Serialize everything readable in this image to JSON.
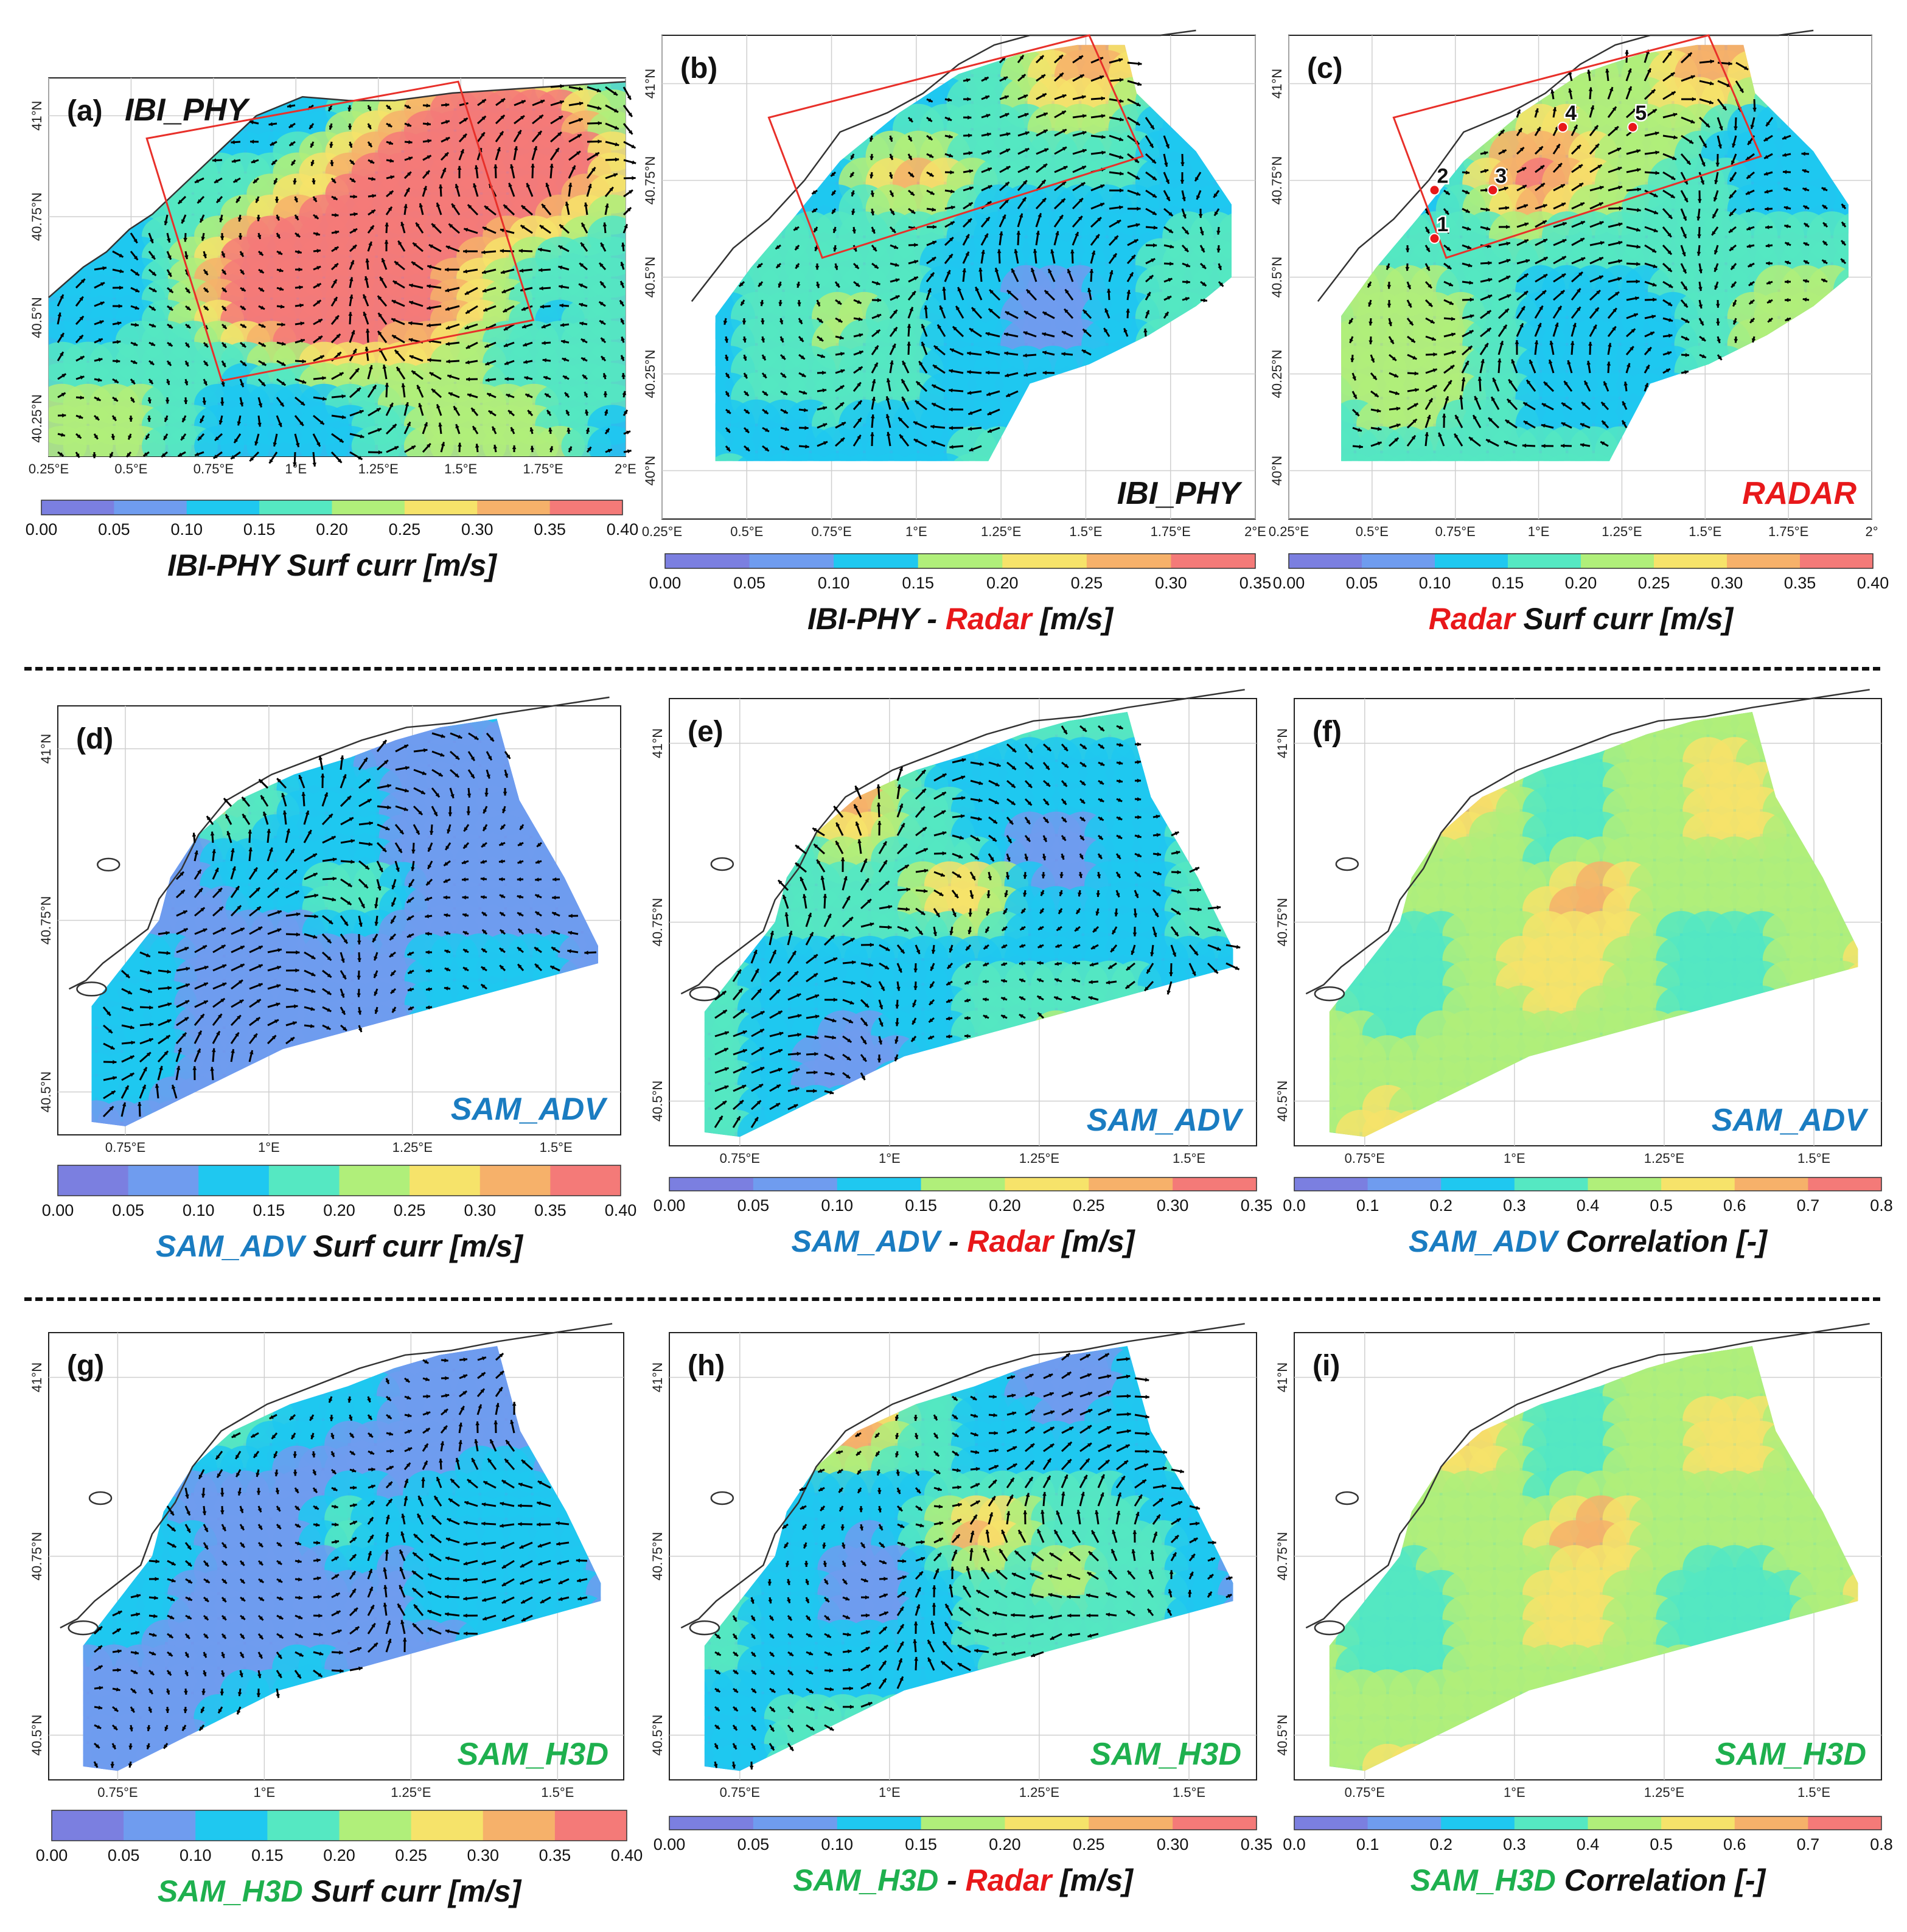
{
  "colors": {
    "ibi_phy": "#111111",
    "radar": "#e8181a",
    "sam_adv": "#1a7cc1",
    "sam_h3d": "#1eb04e",
    "domain_box": "#e8302a",
    "coast": "#333333",
    "arrow": "#000000",
    "palette": [
      "#7b7fe0",
      "#6f9cef",
      "#1fc8f0",
      "#55e8c2",
      "#b0ef7a",
      "#f6e36a",
      "#f6b16a",
      "#f47a78"
    ]
  },
  "chart_data": [
    {
      "id": "a",
      "type": "quiver-contour",
      "panel_label": "(a)",
      "model_label": "IBI_PHY",
      "extent": "a",
      "show_box": true,
      "show_stations": false,
      "xticks": [
        "0.25°E",
        "0.5°E",
        "0.75°E",
        "1°E",
        "1.25°E",
        "1.5°E",
        "1.75°E",
        "2°E"
      ],
      "yticks": [
        "40.25°N",
        "40.5°N",
        "40.75°N",
        "41°N"
      ],
      "colorbar": {
        "ticks": [
          "0.00",
          "0.05",
          "0.10",
          "0.15",
          "0.20",
          "0.25",
          "0.30",
          "0.35",
          "0.40"
        ]
      },
      "title_parts": [
        {
          "text": "IBI-PHY Surf curr [m/s]",
          "color": "ibi_phy"
        }
      ]
    },
    {
      "id": "b",
      "type": "quiver-contour",
      "panel_label": "(b)",
      "model_label": "IBI_PHY",
      "extent": "bc",
      "show_box": true,
      "show_stations": false,
      "xticks": [
        "0.25°E",
        "0.5°E",
        "0.75°E",
        "1°E",
        "1.25°E",
        "1.5°E",
        "1.75°E",
        "2°E"
      ],
      "yticks": [
        "40°N",
        "40.25°N",
        "40.5°N",
        "40.75°N",
        "41°N"
      ],
      "colorbar": {
        "ticks": [
          "0.00",
          "0.05",
          "0.10",
          "0.15",
          "0.20",
          "0.25",
          "0.30",
          "0.35"
        ]
      },
      "title_parts": [
        {
          "text": "IBI-PHY - ",
          "color": "ibi_phy"
        },
        {
          "text": "Radar",
          "color": "radar"
        },
        {
          "text": " [m/s]",
          "color": "ibi_phy"
        }
      ]
    },
    {
      "id": "c",
      "type": "quiver-contour",
      "panel_label": "(c)",
      "model_label": "RADAR",
      "extent": "bc",
      "show_box": true,
      "show_stations": true,
      "stations": [
        "1",
        "2",
        "3",
        "4",
        "5"
      ],
      "xticks": [
        "0.25°E",
        "0.5°E",
        "0.75°E",
        "1°E",
        "1.25°E",
        "1.5°E",
        "1.75°E",
        "2°"
      ],
      "yticks": [
        "40°N",
        "40.25°N",
        "40.5°N",
        "40.75°N",
        "41°N"
      ],
      "colorbar": {
        "ticks": [
          "0.00",
          "0.05",
          "0.10",
          "0.15",
          "0.20",
          "0.25",
          "0.30",
          "0.35",
          "0.40"
        ]
      },
      "title_parts": [
        {
          "text": "Radar",
          "color": "radar"
        },
        {
          "text": "  Surf curr [m/s]",
          "color": "ibi_phy"
        }
      ]
    },
    {
      "id": "d",
      "type": "quiver-contour",
      "panel_label": "(d)",
      "model_label": "SAM_ADV",
      "extent": "zoom",
      "show_box": false,
      "show_stations": false,
      "xticks": [
        "0.75°E",
        "1°E",
        "1.25°E",
        "1.5°E"
      ],
      "yticks": [
        "40.5°N",
        "40.75°N",
        "41°N"
      ],
      "colorbar": {
        "ticks": [
          "0.00",
          "0.05",
          "0.10",
          "0.15",
          "0.20",
          "0.25",
          "0.30",
          "0.35",
          "0.40"
        ]
      },
      "title_parts": [
        {
          "text": "SAM_ADV",
          "color": "sam_adv"
        },
        {
          "text": " Surf curr [m/s]",
          "color": "ibi_phy"
        }
      ]
    },
    {
      "id": "e",
      "type": "quiver-contour",
      "panel_label": "(e)",
      "model_label": "SAM_ADV",
      "extent": "zoom",
      "show_box": false,
      "show_stations": false,
      "xticks": [
        "0.75°E",
        "1°E",
        "1.25°E",
        "1.5°E"
      ],
      "yticks": [
        "40.5°N",
        "40.75°N",
        "41°N"
      ],
      "colorbar": {
        "ticks": [
          "0.00",
          "0.05",
          "0.10",
          "0.15",
          "0.20",
          "0.25",
          "0.30",
          "0.35"
        ]
      },
      "title_parts": [
        {
          "text": "SAM_ADV",
          "color": "sam_adv"
        },
        {
          "text": " - ",
          "color": "ibi_phy"
        },
        {
          "text": "Radar",
          "color": "radar"
        },
        {
          "text": " [m/s]",
          "color": "ibi_phy"
        }
      ]
    },
    {
      "id": "f",
      "type": "contour",
      "panel_label": "(f)",
      "model_label": "SAM_ADV",
      "extent": "zoom",
      "show_box": false,
      "show_stations": false,
      "xticks": [
        "0.75°E",
        "1°E",
        "1.25°E",
        "1.5°E"
      ],
      "yticks": [
        "40.5°N",
        "40.75°N",
        "41°N"
      ],
      "colorbar": {
        "ticks": [
          "0.0",
          "0.1",
          "0.2",
          "0.3",
          "0.4",
          "0.5",
          "0.6",
          "0.7",
          "0.8"
        ]
      },
      "title_parts": [
        {
          "text": "SAM_ADV",
          "color": "sam_adv"
        },
        {
          "text": " Correlation [-]",
          "color": "ibi_phy"
        }
      ]
    },
    {
      "id": "g",
      "type": "quiver-contour",
      "panel_label": "(g)",
      "model_label": "SAM_H3D",
      "extent": "zoom",
      "show_box": false,
      "show_stations": false,
      "xticks": [
        "0.75°E",
        "1°E",
        "1.25°E",
        "1.5°E"
      ],
      "yticks": [
        "40.5°N",
        "40.75°N",
        "41°N"
      ],
      "colorbar": {
        "ticks": [
          "0.00",
          "0.05",
          "0.10",
          "0.15",
          "0.20",
          "0.25",
          "0.30",
          "0.35",
          "0.40"
        ]
      },
      "title_parts": [
        {
          "text": "SAM_H3D",
          "color": "sam_h3d"
        },
        {
          "text": " Surf curr [m/s]",
          "color": "ibi_phy"
        }
      ]
    },
    {
      "id": "h",
      "type": "quiver-contour",
      "panel_label": "(h)",
      "model_label": "SAM_H3D",
      "extent": "zoom",
      "show_box": false,
      "show_stations": false,
      "xticks": [
        "0.75°E",
        "1°E",
        "1.25°E",
        "1.5°E"
      ],
      "yticks": [
        "40.5°N",
        "40.75°N",
        "41°N"
      ],
      "colorbar": {
        "ticks": [
          "0.00",
          "0.05",
          "0.10",
          "0.15",
          "0.20",
          "0.25",
          "0.30",
          "0.35"
        ]
      },
      "title_parts": [
        {
          "text": "SAM_H3D",
          "color": "sam_h3d"
        },
        {
          "text": " - ",
          "color": "ibi_phy"
        },
        {
          "text": "Radar",
          "color": "radar"
        },
        {
          "text": " [m/s]",
          "color": "ibi_phy"
        }
      ]
    },
    {
      "id": "i",
      "type": "contour",
      "panel_label": "(i)",
      "model_label": "SAM_H3D",
      "extent": "zoom",
      "show_box": false,
      "show_stations": false,
      "xticks": [
        "0.75°E",
        "1°E",
        "1.25°E",
        "1.5°E"
      ],
      "yticks": [
        "40.5°N",
        "40.75°N",
        "41°N"
      ],
      "colorbar": {
        "ticks": [
          "0.0",
          "0.1",
          "0.2",
          "0.3",
          "0.4",
          "0.5",
          "0.6",
          "0.7",
          "0.8"
        ]
      },
      "title_parts": [
        {
          "text": "SAM_H3D",
          "color": "sam_h3d"
        },
        {
          "text": " Correlation [-]",
          "color": "ibi_phy"
        }
      ]
    }
  ]
}
